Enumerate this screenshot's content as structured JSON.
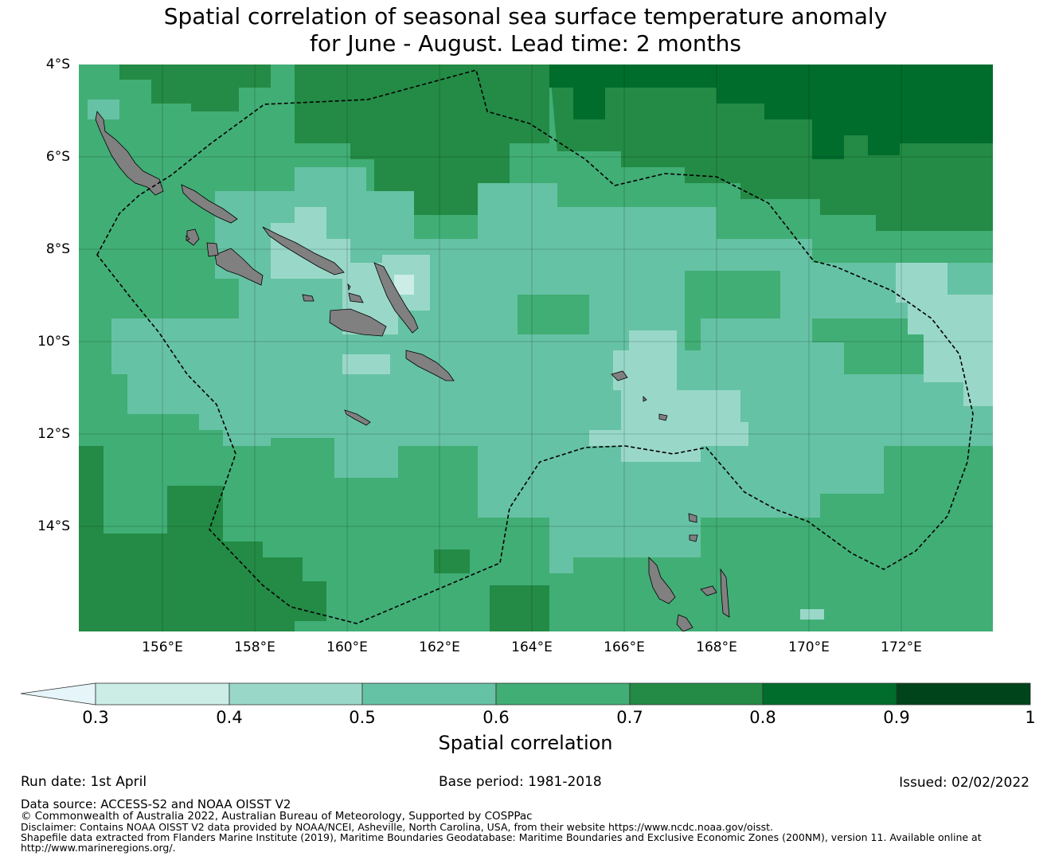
{
  "title": {
    "line1": "Spatial correlation of seasonal sea surface temperature anomaly",
    "line2": "for June - August. Lead time: 2 months"
  },
  "map": {
    "lat_labels": [
      "4°S",
      "6°S",
      "8°S",
      "10°S",
      "12°S",
      "14°S"
    ],
    "lon_labels": [
      "156°E",
      "158°E",
      "160°E",
      "162°E",
      "164°E",
      "166°E",
      "168°E",
      "170°E",
      "172°E"
    ],
    "land_color": "#808080",
    "boundary_style": "dashed black line (EEZ boundary)",
    "gridlines": true
  },
  "colorbar": {
    "label": "Spatial correlation",
    "ticks": [
      "0.3",
      "0.4",
      "0.5",
      "0.6",
      "0.7",
      "0.8",
      "0.9",
      "1"
    ],
    "colors": [
      "#e5f5f9",
      "#ccece6",
      "#99d8c9",
      "#66c2a4",
      "#41ae76",
      "#238b45",
      "#006d2c",
      "#00441b"
    ],
    "extend": "min"
  },
  "footer": {
    "run_date": "Run date: 1st April",
    "base_period": "Base period: 1981-2018",
    "issued": "Issued: 02/02/2022",
    "data_source": "Data source: ACCESS-S2 and NOAA OISST V2",
    "copyright": "© Commonwealth of Australia 2022, Australian Bureau of Meteorology, Supported by COSPPac",
    "disclaimer": "Disclaimer: Contains NOAA OISST V2 data provided by NOAA/NCEI, Asheville, North Carolina, USA, from their website https://www.ncdc.noaa.gov/oisst.",
    "shapefile_1": "Shapefile data extracted from Flanders Marine Institute (2019), Maritime Boundaries Geodatabase: Maritime Boundaries and Exclusive Economic Zones (200NM), version 11. Available online at",
    "shapefile_2": "http://www.marineregions.org/."
  }
}
